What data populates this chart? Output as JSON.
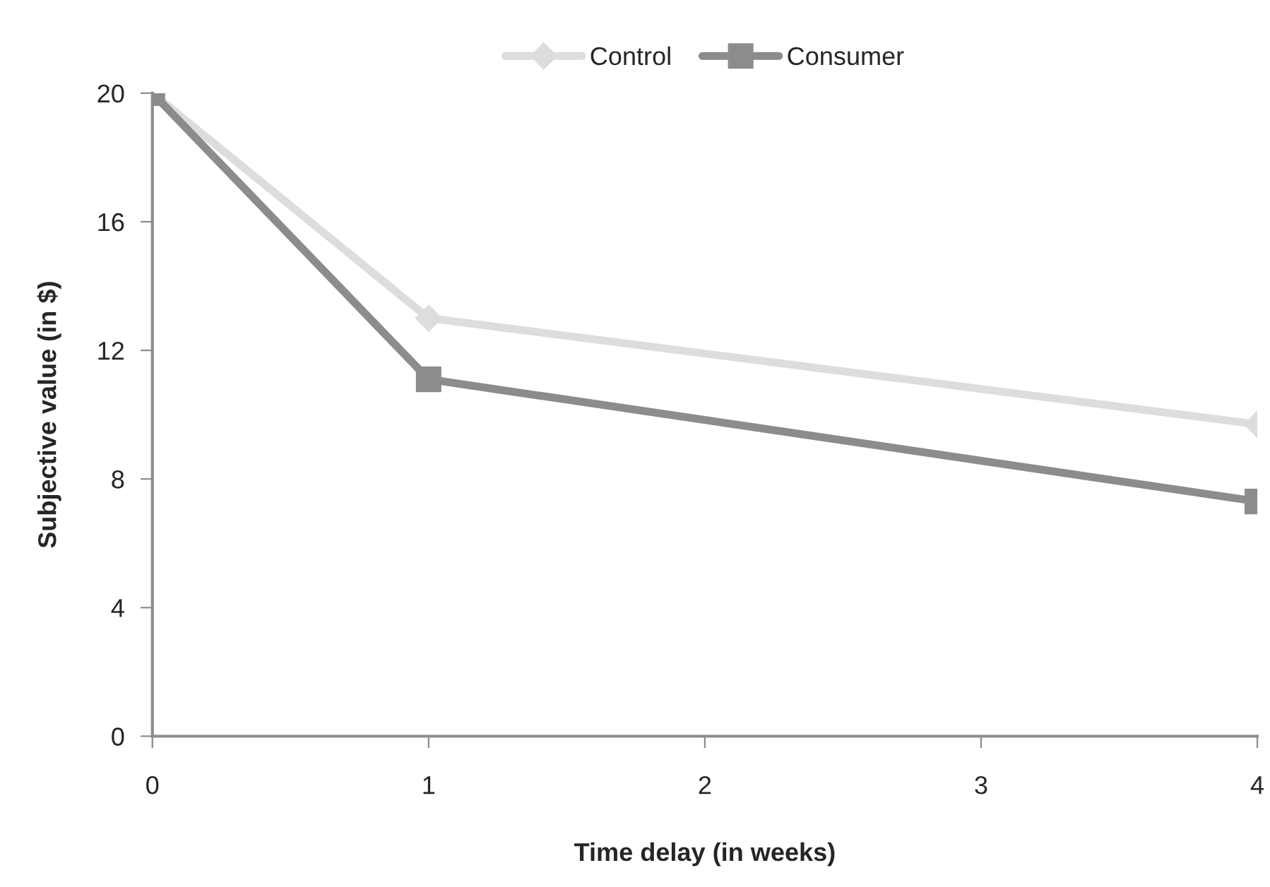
{
  "chart_data": {
    "type": "line",
    "xlabel": "Time delay (in weeks)",
    "ylabel": "Subjective value (in $)",
    "x": [
      0,
      1,
      4
    ],
    "series": [
      {
        "name": "Control",
        "color": "#dddddd",
        "marker": "diamond",
        "values": [
          20,
          13.0,
          9.7
        ]
      },
      {
        "name": "Consumer",
        "color": "#8c8c8c",
        "marker": "square",
        "values": [
          20,
          11.1,
          7.3
        ]
      }
    ],
    "xlim": [
      0,
      4
    ],
    "xticks": [
      0,
      1,
      2,
      3,
      4
    ],
    "ylim": [
      0,
      20
    ],
    "yticks": [
      0,
      4,
      8,
      12,
      16,
      20
    ],
    "grid": false,
    "legend": "top",
    "line_style": "solid"
  }
}
